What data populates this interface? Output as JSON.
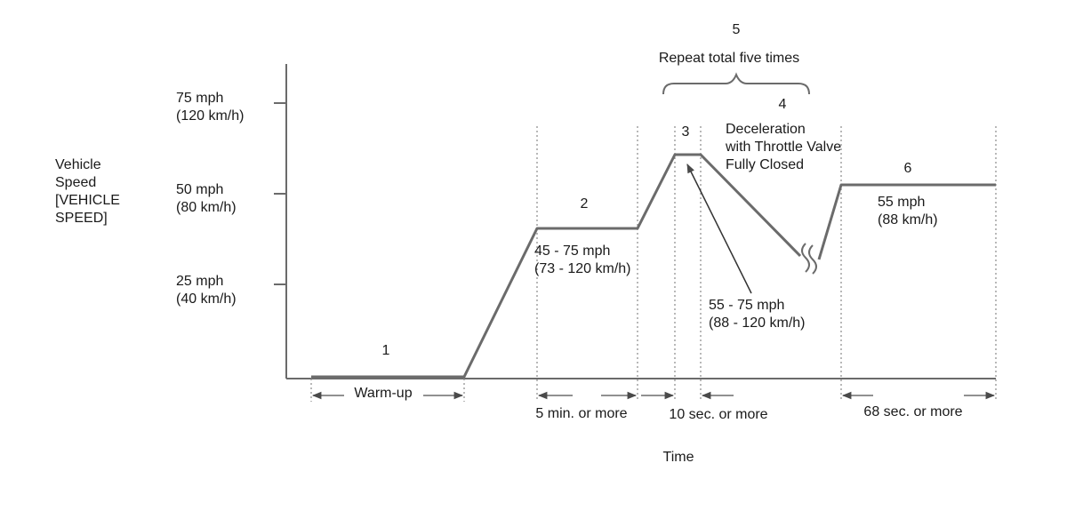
{
  "diagram": {
    "y_axis": {
      "label_lines": [
        "Vehicle",
        "Speed",
        "[VEHICLE",
        "SPEED]"
      ],
      "ticks": [
        {
          "mph": "75 mph",
          "kmh": "(120 km/h)"
        },
        {
          "mph": "50 mph",
          "kmh": "(80 km/h)"
        },
        {
          "mph": "25 mph",
          "kmh": "(40 km/h)"
        }
      ]
    },
    "x_axis_label": "Time",
    "header": {
      "number": "5",
      "text": "Repeat total five times"
    },
    "steps": [
      {
        "number": "1",
        "duration": "Warm-up"
      },
      {
        "number": "2",
        "speed_lines": [
          "45 - 75 mph",
          "(73 - 120 km/h)"
        ],
        "duration": "5 min. or more"
      },
      {
        "number": "3",
        "speed_lines": [
          "55 - 75 mph",
          "(88 - 120 km/h)"
        ],
        "duration": "10 sec. or more"
      },
      {
        "number": "4",
        "text_lines": [
          "Deceleration",
          "with Throttle Valve",
          "Fully Closed"
        ]
      },
      {
        "number": "6",
        "speed_lines": [
          "55 mph",
          "(88 km/h)"
        ],
        "duration": "68 sec. or more"
      }
    ]
  }
}
